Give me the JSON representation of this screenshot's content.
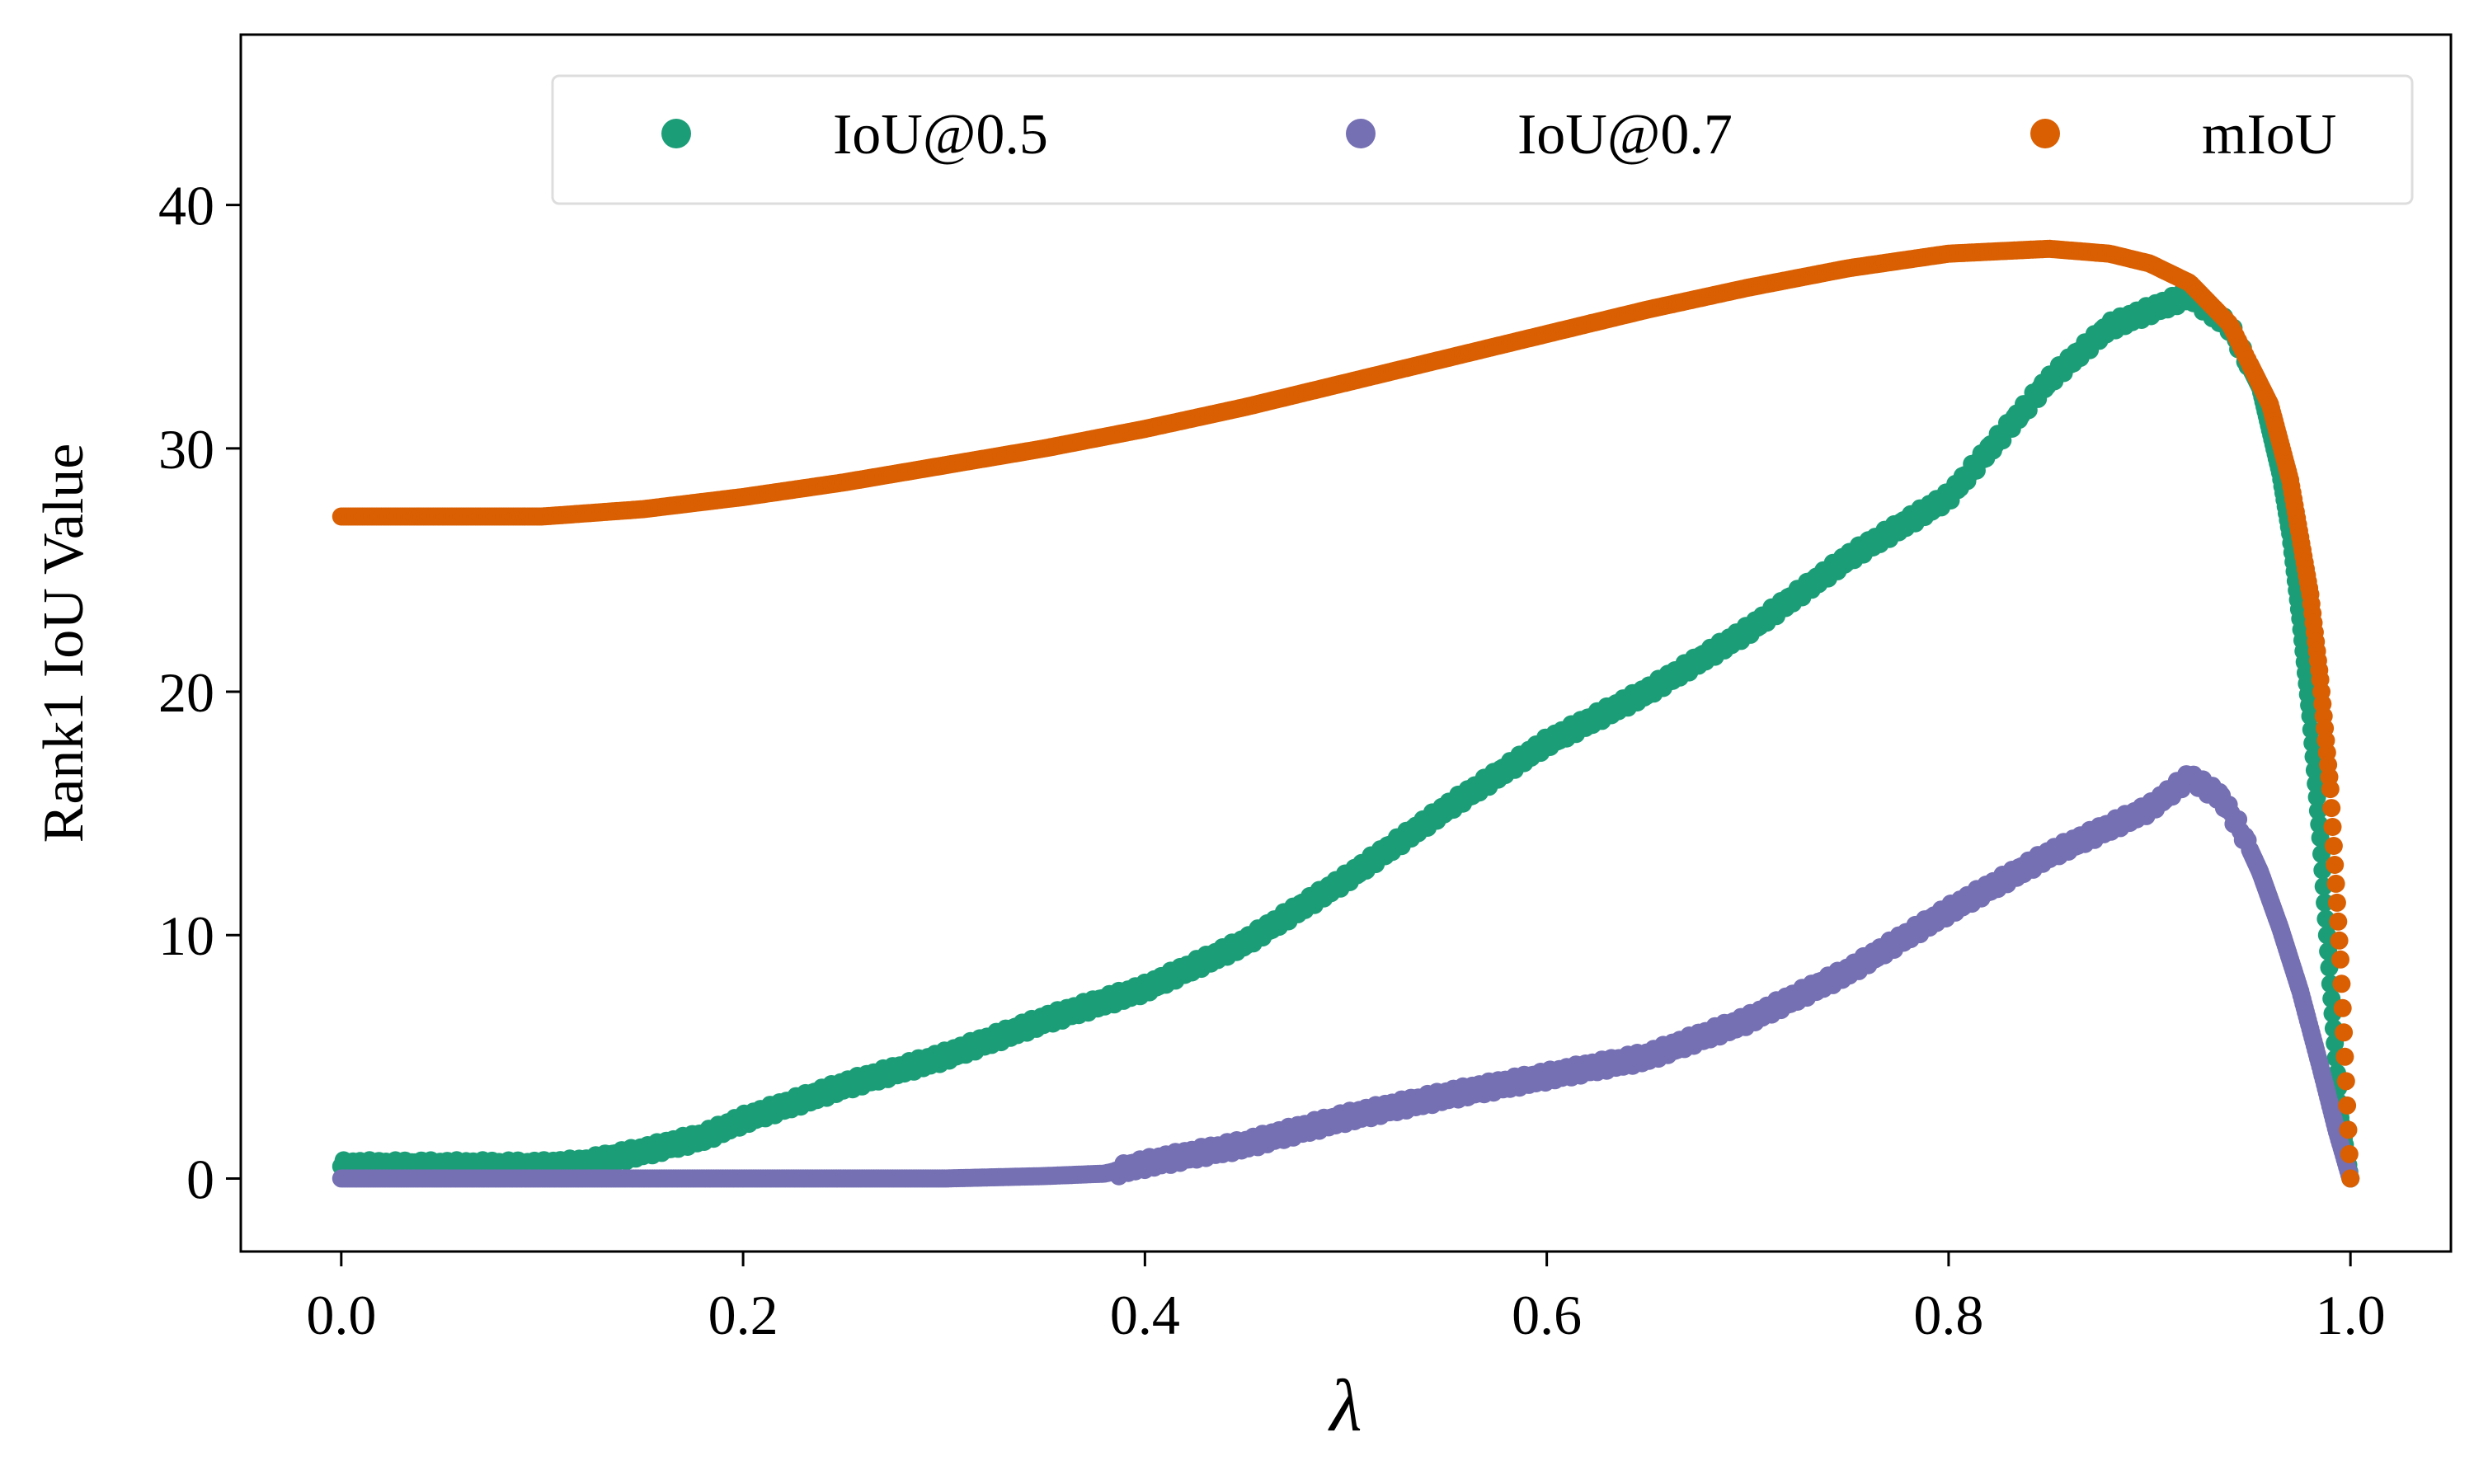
{
  "chart_data": {
    "type": "scatter",
    "title": "",
    "xlabel": "λ",
    "ylabel": "Rank1 IoU Value",
    "xlim": [
      -0.05,
      1.05
    ],
    "ylim": [
      -3,
      47
    ],
    "xticks": [
      "0.0",
      "0.2",
      "0.4",
      "0.6",
      "0.8",
      "1.0"
    ],
    "yticks": [
      "0",
      "10",
      "20",
      "30",
      "40"
    ],
    "grid": false,
    "legend": {
      "position": "top",
      "columns": 3
    },
    "series": [
      {
        "name": "IoU@0.5",
        "color": "#1b9e77",
        "points": [
          [
            0.0,
            0.5
          ],
          [
            0.05,
            0.5
          ],
          [
            0.1,
            0.5
          ],
          [
            0.12,
            0.6
          ],
          [
            0.15,
            1.1
          ],
          [
            0.18,
            1.7
          ],
          [
            0.2,
            2.4
          ],
          [
            0.25,
            3.8
          ],
          [
            0.3,
            5.0
          ],
          [
            0.35,
            6.5
          ],
          [
            0.4,
            7.8
          ],
          [
            0.45,
            9.7
          ],
          [
            0.5,
            12.3
          ],
          [
            0.55,
            15.2
          ],
          [
            0.6,
            17.9
          ],
          [
            0.65,
            20.0
          ],
          [
            0.7,
            22.5
          ],
          [
            0.75,
            25.5
          ],
          [
            0.8,
            28.0
          ],
          [
            0.85,
            32.8
          ],
          [
            0.88,
            35.0
          ],
          [
            0.92,
            36.3
          ],
          [
            0.94,
            35.0
          ],
          [
            0.955,
            32.5
          ],
          [
            0.965,
            29.0
          ],
          [
            0.97,
            26.5
          ],
          [
            0.975,
            23.0
          ],
          [
            0.98,
            19.0
          ],
          [
            0.985,
            14.0
          ],
          [
            0.99,
            8.0
          ],
          [
            0.995,
            2.5
          ],
          [
            1.0,
            0.0
          ]
        ]
      },
      {
        "name": "IoU@0.7",
        "color": "#7570b3",
        "points": [
          [
            0.0,
            0.0
          ],
          [
            0.1,
            0.0
          ],
          [
            0.2,
            0.0
          ],
          [
            0.3,
            0.0
          ],
          [
            0.35,
            0.1
          ],
          [
            0.38,
            0.2
          ],
          [
            0.4,
            0.6
          ],
          [
            0.45,
            1.4
          ],
          [
            0.5,
            2.5
          ],
          [
            0.55,
            3.4
          ],
          [
            0.6,
            4.2
          ],
          [
            0.65,
            5.0
          ],
          [
            0.7,
            6.5
          ],
          [
            0.75,
            8.5
          ],
          [
            0.8,
            11.0
          ],
          [
            0.85,
            13.3
          ],
          [
            0.9,
            15.2
          ],
          [
            0.92,
            16.5
          ],
          [
            0.935,
            15.7
          ],
          [
            0.945,
            14.4
          ],
          [
            0.955,
            12.6
          ],
          [
            0.965,
            10.3
          ],
          [
            0.975,
            7.7
          ],
          [
            0.985,
            4.6
          ],
          [
            0.993,
            2.0
          ],
          [
            1.0,
            0.0
          ]
        ]
      },
      {
        "name": "mIoU",
        "color": "#d95f02",
        "points": [
          [
            0.0,
            27.2
          ],
          [
            0.05,
            27.2
          ],
          [
            0.1,
            27.2
          ],
          [
            0.15,
            27.5
          ],
          [
            0.2,
            28.0
          ],
          [
            0.25,
            28.6
          ],
          [
            0.3,
            29.3
          ],
          [
            0.35,
            30.0
          ],
          [
            0.4,
            30.8
          ],
          [
            0.45,
            31.7
          ],
          [
            0.5,
            32.7
          ],
          [
            0.55,
            33.7
          ],
          [
            0.6,
            34.7
          ],
          [
            0.65,
            35.7
          ],
          [
            0.7,
            36.6
          ],
          [
            0.75,
            37.4
          ],
          [
            0.8,
            38.0
          ],
          [
            0.85,
            38.2
          ],
          [
            0.88,
            38.0
          ],
          [
            0.9,
            37.6
          ],
          [
            0.92,
            36.8
          ],
          [
            0.94,
            35.1
          ],
          [
            0.96,
            31.8
          ],
          [
            0.97,
            28.7
          ],
          [
            0.98,
            24.0
          ],
          [
            0.985,
            20.5
          ],
          [
            0.99,
            16.0
          ],
          [
            0.995,
            9.0
          ],
          [
            1.0,
            0.0
          ]
        ]
      }
    ]
  }
}
